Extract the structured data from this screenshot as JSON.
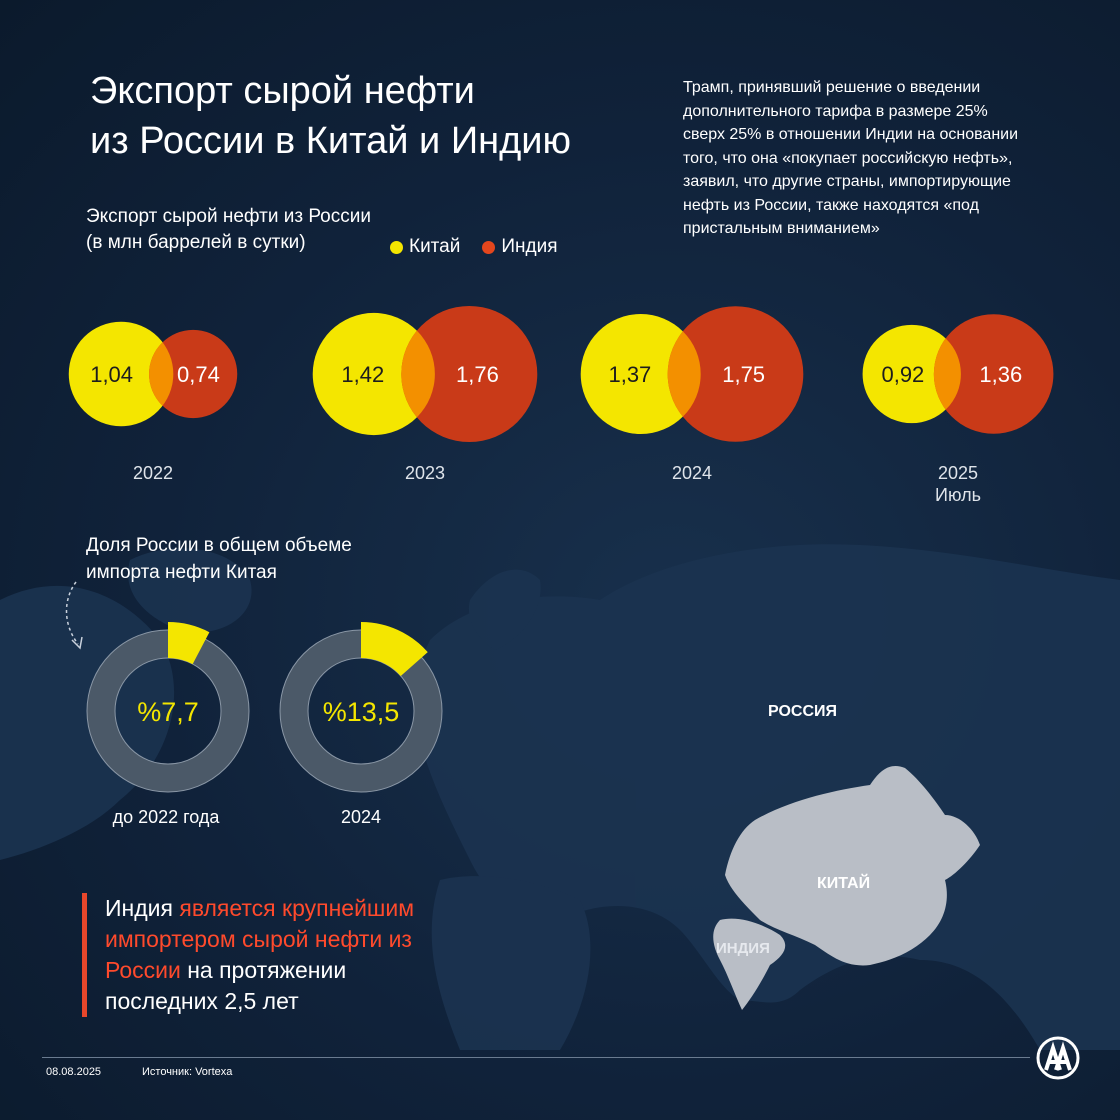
{
  "title_line1": "Экспорт сырой нефти",
  "title_line2": "из России в Китай и Индию",
  "note": "Трамп, принявший решение о введении дополнительного тарифа в размере 25% сверх 25% в отношении Индии на основании того, что она «покупает российскую нефть», заявил, что другие страны, импортирующие нефть из России, также находятся «под пристальным вниманием»",
  "colors": {
    "china": "#f4e600",
    "india": "#c93a18",
    "overlap": "#f39000",
    "accent": "#ff4a2c"
  },
  "chart_data": [
    {
      "type": "bubble-pairs",
      "title_line1": "Экспорт сырой нефти из России",
      "title_line2": "(в млн баррелей в сутки)",
      "legend_placement": "top",
      "series": [
        {
          "name": "Китай",
          "values": [
            "1,04",
            "1,42",
            "1,37",
            "0,92"
          ],
          "numeric": [
            1.04,
            1.42,
            1.37,
            0.92
          ]
        },
        {
          "name": "Индия",
          "values": [
            "0,74",
            "1,76",
            "1,75",
            "1,36"
          ],
          "numeric": [
            0.74,
            1.76,
            1.75,
            1.36
          ]
        }
      ],
      "categories": [
        "2022",
        "2023",
        "2024",
        "2025"
      ],
      "category_sublabels": [
        "",
        "",
        "",
        "Июль"
      ]
    },
    {
      "type": "donut",
      "title_line1": "Доля России в общем объеме",
      "title_line2": "импорта нефти Китая",
      "items": [
        {
          "label": "до 2022 года",
          "value": 7.7,
          "value_label": "%7,7"
        },
        {
          "label": "2024",
          "value": 13.5,
          "value_label": "%13,5"
        }
      ]
    }
  ],
  "map_labels": {
    "russia": "РОССИЯ",
    "china": "КИТАЙ",
    "india": "ИНДИЯ"
  },
  "callout": {
    "part1": "Индия",
    "part2": " является крупнейшим импортером сырой нефти из России",
    "part3": " на протяжении последних 2,5 лет"
  },
  "footer": {
    "date": "08.08.2025",
    "source": "Источник: Vortexa",
    "logo_text": "AA"
  }
}
